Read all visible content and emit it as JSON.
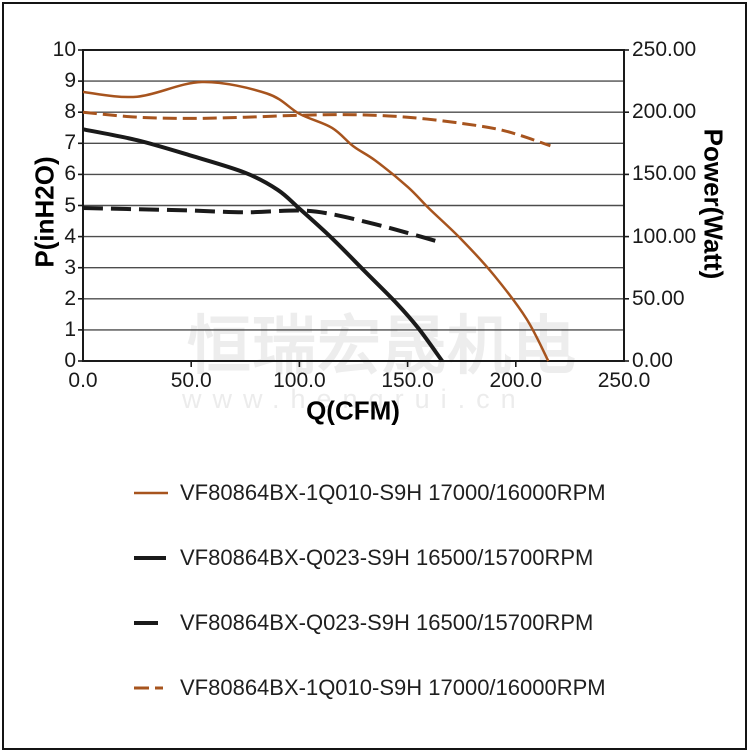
{
  "page": {
    "background": "#ffffff",
    "border_color": "#141414"
  },
  "watermark": {
    "cjk_text": "恒瑞宏晟机电",
    "url_text": "www.hengrui.cn",
    "color": "#ededed"
  },
  "chart_data": {
    "type": "line",
    "title": "",
    "xlabel": "Q(CFM)",
    "ylabel_left": "P(inH2O)",
    "ylabel_right": "Power(Watt)",
    "x_range": [
      0,
      250
    ],
    "y_left_range": [
      0,
      10
    ],
    "y_right_range": [
      0,
      250
    ],
    "x_ticks": [
      "0.0",
      "50.0",
      "100.0",
      "150.0",
      "200.0",
      "250.0"
    ],
    "y_left_ticks": [
      "0",
      "1",
      "2",
      "3",
      "4",
      "5",
      "6",
      "7",
      "8",
      "9",
      "10"
    ],
    "y_right_ticks": [
      "0.00",
      "50.00",
      "100.00",
      "150.00",
      "200.00",
      "250.00"
    ],
    "grid": "horizontal-only",
    "legend_position": "bottom",
    "colors": {
      "brown": "#A7541E",
      "black": "#1a1a1a"
    },
    "series": [
      {
        "name": "VF80864BX-1Q010-S9H 17000/16000RPM",
        "axis": "left",
        "unit": "inH2O",
        "color": "#A7541E",
        "style": "solid",
        "width": 2.5,
        "x": [
          0,
          25,
          55,
          85,
          100,
          115,
          125,
          135,
          150,
          160,
          175,
          190,
          205,
          215
        ],
        "y": [
          8.65,
          8.5,
          8.97,
          8.6,
          7.95,
          7.5,
          6.9,
          6.45,
          5.6,
          4.9,
          3.9,
          2.75,
          1.35,
          0
        ]
      },
      {
        "name": "VF80864BX-Q023-S9H 16500/15700RPM",
        "axis": "left",
        "unit": "inH2O",
        "color": "#1a1a1a",
        "style": "solid",
        "width": 4,
        "x": [
          0,
          25,
          50,
          75,
          90,
          100,
          115,
          130,
          145,
          155,
          166
        ],
        "y": [
          7.45,
          7.1,
          6.6,
          6.05,
          5.5,
          4.9,
          3.95,
          2.9,
          1.85,
          1.05,
          0
        ]
      },
      {
        "name": "VF80864BX-Q023-S9H 16500/15700RPM",
        "axis": "right",
        "unit": "Watt",
        "color": "#1a1a1a",
        "style": "dashed",
        "width": 4,
        "dash": [
          20,
          8
        ],
        "legend_dash": "24 40",
        "x": [
          0,
          25,
          50,
          75,
          100,
          115,
          135,
          150,
          166
        ],
        "y": [
          123,
          122,
          121,
          119.5,
          121,
          118,
          110,
          103,
          95
        ]
      },
      {
        "name": "VF80864BX-1Q010-S9H 17000/16000RPM",
        "axis": "right",
        "unit": "Watt",
        "color": "#A7541E",
        "style": "dashed",
        "width": 3,
        "dash": [
          14,
          6
        ],
        "legend_dash": "15 6 8 40",
        "x": [
          0,
          25,
          50,
          75,
          100,
          125,
          150,
          175,
          195,
          216
        ],
        "y": [
          200,
          196,
          195,
          196,
          197.5,
          198,
          196,
          191,
          185,
          173
        ]
      }
    ]
  }
}
